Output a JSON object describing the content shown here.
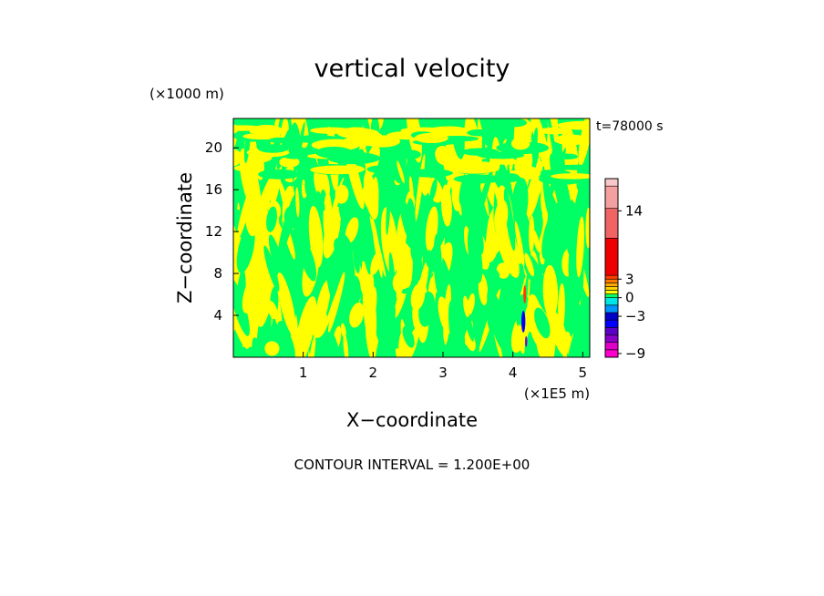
{
  "chart_data": {
    "type": "heatmap",
    "title": "vertical velocity",
    "xlabel": "X−coordinate",
    "ylabel": "Z−coordinate",
    "x_unit": "(×1E5 m)",
    "y_unit": "(×1000 m)",
    "time_label": "t=78000 s",
    "footer": "CONTOUR INTERVAL = 1.200E+00",
    "xlim": [
      0,
      5.1
    ],
    "ylim": [
      0,
      22.8
    ],
    "x_ticks": [
      1,
      2,
      3,
      4,
      5
    ],
    "y_ticks": [
      4,
      8,
      12,
      16,
      20
    ],
    "colorbar": {
      "ticks": [
        -9,
        -3,
        0,
        3,
        14
      ],
      "tick_labels": [
        "−9",
        "−3",
        "0",
        "3",
        "14"
      ],
      "levels": [
        {
          "from": -9.6,
          "to": -8.4,
          "color": "#ff00cc"
        },
        {
          "from": -8.4,
          "to": -7.2,
          "color": "#e000c8"
        },
        {
          "from": -7.2,
          "to": -6.0,
          "color": "#8a00c8"
        },
        {
          "from": -6.0,
          "to": -4.8,
          "color": "#5a00c8"
        },
        {
          "from": -4.8,
          "to": -3.6,
          "color": "#0000ff"
        },
        {
          "from": -3.6,
          "to": -2.4,
          "color": "#0000c8"
        },
        {
          "from": -2.4,
          "to": -1.2,
          "color": "#0096ff"
        },
        {
          "from": -1.2,
          "to": 0.0,
          "color": "#00e6e6"
        },
        {
          "from": 0.0,
          "to": 0.6,
          "color": "#00ff64"
        },
        {
          "from": 0.6,
          "to": 1.2,
          "color": "#ffff00"
        },
        {
          "from": 1.2,
          "to": 1.8,
          "color": "#ffd200"
        },
        {
          "from": 1.8,
          "to": 2.4,
          "color": "#ffaa00"
        },
        {
          "from": 2.4,
          "to": 3.0,
          "color": "#ff7800"
        },
        {
          "from": 3.0,
          "to": 3.6,
          "color": "#ff3c00"
        },
        {
          "from": 3.6,
          "to": 9.6,
          "color": "#ee0000"
        },
        {
          "from": 9.6,
          "to": 14.4,
          "color": "#f06464"
        },
        {
          "from": 14.4,
          "to": 18.0,
          "color": "#f4a0a0"
        },
        {
          "from": 18.0,
          "to": 19.2,
          "color": "#f8c8c8"
        }
      ]
    },
    "field_description_colors": {
      "dominant_low": "#00ff64",
      "dominant_high": "#ffff00",
      "updraft": "#ff3c00",
      "downdraft": "#0000ff"
    }
  }
}
